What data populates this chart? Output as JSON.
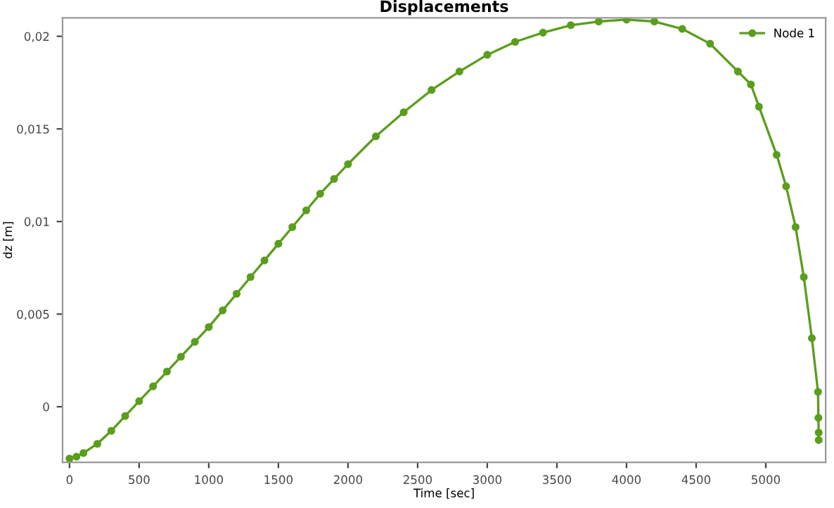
{
  "chart_data": {
    "type": "line",
    "title": "Displacements",
    "xlabel": "Time [sec]",
    "ylabel": "dz [m]",
    "xlim": [
      -50,
      5430
    ],
    "ylim": [
      -0.003,
      0.021
    ],
    "xticks": [
      0,
      500,
      1000,
      1500,
      2000,
      2500,
      3000,
      3500,
      4000,
      4500,
      5000
    ],
    "yticks": [
      {
        "value": 0,
        "label": "0"
      },
      {
        "value": 0.005,
        "label": "0,005"
      },
      {
        "value": 0.01,
        "label": "0,01"
      },
      {
        "value": 0.015,
        "label": "0,015"
      },
      {
        "value": 0.02,
        "label": "0,02"
      }
    ],
    "grid": false,
    "legend": "top right",
    "marker": "circle",
    "line_style": "solid",
    "series": [
      {
        "name": "Node 1",
        "color": "#5a9e1c",
        "x": [
          0,
          50,
          100,
          200,
          300,
          400,
          500,
          600,
          700,
          800,
          900,
          1000,
          1100,
          1200,
          1300,
          1400,
          1500,
          1600,
          1700,
          1800,
          1900,
          2000,
          2200,
          2400,
          2600,
          2800,
          3000,
          3200,
          3400,
          3600,
          3800,
          4000,
          4200,
          4400,
          4600,
          4800,
          4893,
          4951,
          5078,
          5146,
          5214,
          5273,
          5331,
          5375,
          5378,
          5380,
          5380
        ],
        "values": [
          -0.0028,
          -0.0027,
          -0.0025,
          -0.002,
          -0.0013,
          -0.0005,
          0.0003,
          0.0011,
          0.0019,
          0.0027,
          0.0035,
          0.0043,
          0.0052,
          0.0061,
          0.007,
          0.0079,
          0.0088,
          0.0097,
          0.0106,
          0.0115,
          0.0123,
          0.0131,
          0.0146,
          0.0159,
          0.0171,
          0.0181,
          0.019,
          0.0197,
          0.0202,
          0.0206,
          0.0208,
          0.0209,
          0.0208,
          0.0204,
          0.0196,
          0.0181,
          0.0174,
          0.0162,
          0.0136,
          0.0119,
          0.0097,
          0.007,
          0.0037,
          0.0008,
          -0.0006,
          -0.0014,
          -0.0018
        ]
      }
    ]
  }
}
